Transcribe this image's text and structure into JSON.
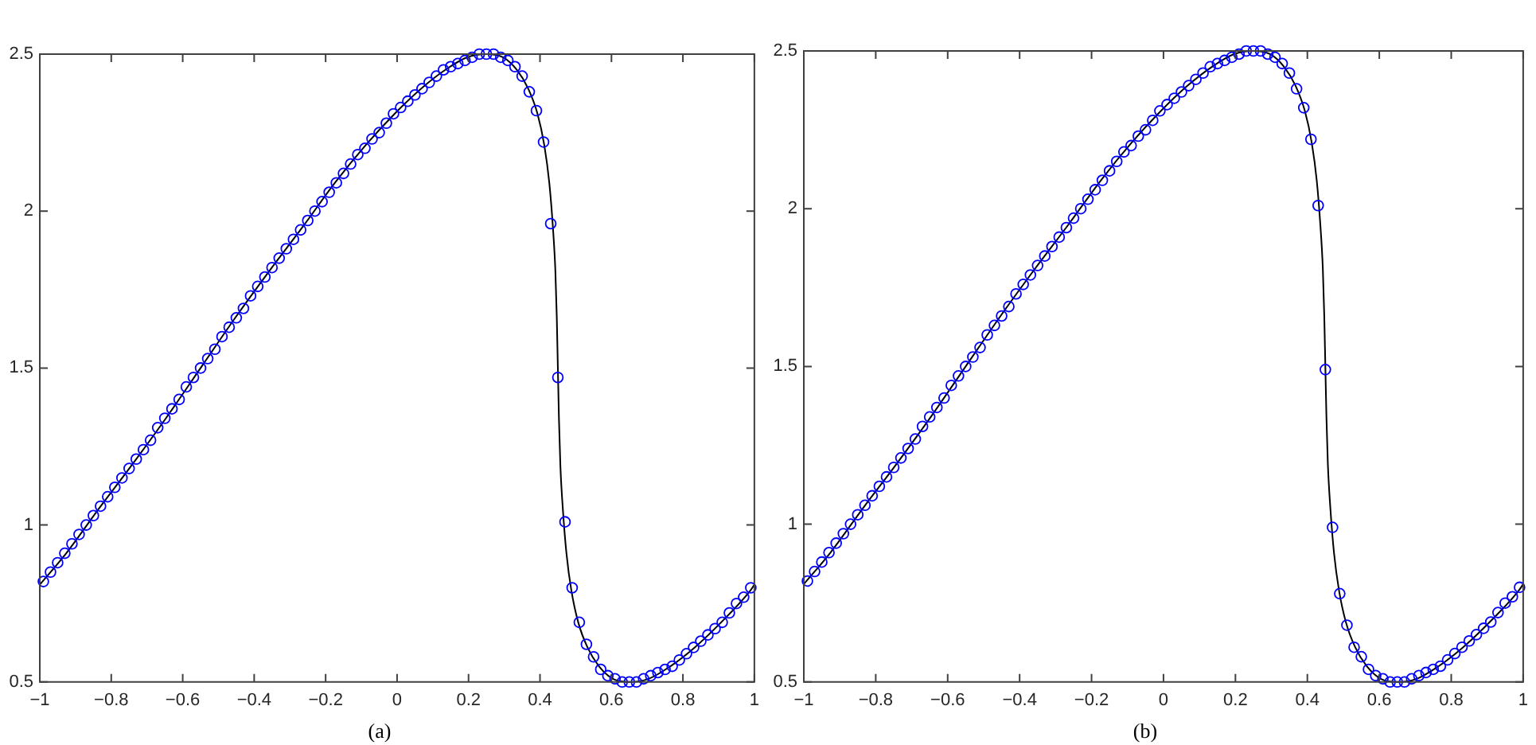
{
  "chart_data": [
    {
      "type": "line",
      "title": "(a)",
      "xlim": [
        -1,
        1
      ],
      "xticks": [
        {
          "value": -1,
          "label": "−1"
        },
        {
          "value": -0.8,
          "label": "−0.8"
        },
        {
          "value": -0.6,
          "label": "−0.6"
        },
        {
          "value": -0.4,
          "label": "−0.4"
        },
        {
          "value": -0.2,
          "label": "−0.2"
        },
        0,
        0.2,
        0.4,
        0.6,
        0.8,
        1
      ],
      "ylim": [
        0.5,
        2.5
      ],
      "yticks": [
        0.5,
        1,
        1.5,
        2,
        2.5
      ],
      "series": [
        {
          "type": "line",
          "color": "#000000",
          "marker": "none",
          "line_style": "solid",
          "x": [
            -1,
            -0.926,
            -0.836,
            -0.743,
            -0.647,
            -0.55,
            -0.453,
            -0.357,
            -0.264,
            -0.174,
            -0.088,
            -0.007,
            0.067,
            0.135,
            0.196,
            0.25,
            0.296,
            0.335,
            0.367,
            0.393,
            0.412,
            0.426,
            0.436,
            0.443,
            0.447,
            0.45,
            0.453,
            0.457,
            0.464,
            0.474,
            0.488,
            0.507,
            0.533,
            0.565,
            0.604,
            0.65,
            0.704,
            0.765,
            0.833,
            0.907,
            0.988,
            1
          ],
          "values": [
            0.81,
            0.91,
            1.05,
            1.19,
            1.34,
            1.5,
            1.66,
            1.81,
            1.95,
            2.09,
            2.21,
            2.31,
            2.39,
            2.45,
            2.49,
            2.5,
            2.49,
            2.45,
            2.39,
            2.31,
            2.21,
            2.09,
            1.95,
            1.81,
            1.66,
            1.5,
            1.34,
            1.19,
            1.05,
            0.91,
            0.79,
            0.69,
            0.61,
            0.55,
            0.51,
            0.5,
            0.51,
            0.55,
            0.61,
            0.69,
            0.79,
            0.81
          ]
        },
        {
          "type": "scatter",
          "color": "#0000ff",
          "marker": "circle",
          "x": [
            -0.99,
            -0.97,
            -0.95,
            -0.93,
            -0.91,
            -0.89,
            -0.87,
            -0.85,
            -0.83,
            -0.81,
            -0.79,
            -0.77,
            -0.75,
            -0.73,
            -0.71,
            -0.69,
            -0.67,
            -0.65,
            -0.63,
            -0.61,
            -0.59,
            -0.57,
            -0.55,
            -0.53,
            -0.51,
            -0.49,
            -0.47,
            -0.45,
            -0.43,
            -0.41,
            -0.39,
            -0.37,
            -0.35,
            -0.33,
            -0.31,
            -0.29,
            -0.27,
            -0.25,
            -0.23,
            -0.21,
            -0.19,
            -0.17,
            -0.15,
            -0.13,
            -0.11,
            -0.09,
            -0.07,
            -0.05,
            -0.03,
            -0.01,
            0.01,
            0.03,
            0.05,
            0.07,
            0.09,
            0.11,
            0.13,
            0.15,
            0.17,
            0.19,
            0.21,
            0.23,
            0.25,
            0.27,
            0.29,
            0.31,
            0.33,
            0.35,
            0.37,
            0.39,
            0.41,
            0.43,
            0.45,
            0.47,
            0.49,
            0.51,
            0.53,
            0.55,
            0.57,
            0.59,
            0.61,
            0.63,
            0.65,
            0.67,
            0.69,
            0.71,
            0.73,
            0.75,
            0.77,
            0.79,
            0.81,
            0.83,
            0.85,
            0.87,
            0.89,
            0.91,
            0.93,
            0.95,
            0.97,
            0.99
          ],
          "values": [
            0.82,
            0.85,
            0.88,
            0.91,
            0.94,
            0.97,
            1.0,
            1.03,
            1.06,
            1.09,
            1.12,
            1.15,
            1.18,
            1.21,
            1.24,
            1.27,
            1.31,
            1.34,
            1.37,
            1.4,
            1.44,
            1.47,
            1.5,
            1.53,
            1.56,
            1.6,
            1.63,
            1.66,
            1.69,
            1.73,
            1.76,
            1.79,
            1.82,
            1.85,
            1.88,
            1.91,
            1.94,
            1.97,
            2.0,
            2.03,
            2.06,
            2.09,
            2.12,
            2.15,
            2.18,
            2.2,
            2.23,
            2.25,
            2.28,
            2.31,
            2.33,
            2.35,
            2.37,
            2.39,
            2.41,
            2.43,
            2.45,
            2.46,
            2.47,
            2.48,
            2.49,
            2.5,
            2.5,
            2.5,
            2.49,
            2.48,
            2.46,
            2.43,
            2.38,
            2.32,
            2.22,
            1.96,
            1.47,
            1.01,
            0.8,
            0.69,
            0.62,
            0.58,
            0.54,
            0.52,
            0.51,
            0.5,
            0.5,
            0.5,
            0.51,
            0.52,
            0.53,
            0.54,
            0.55,
            0.57,
            0.59,
            0.61,
            0.63,
            0.65,
            0.67,
            0.69,
            0.72,
            0.75,
            0.77,
            0.8
          ]
        }
      ]
    },
    {
      "type": "line",
      "title": "(b)",
      "xlim": [
        -1,
        1
      ],
      "xticks": [
        {
          "value": -1,
          "label": "−1"
        },
        {
          "value": -0.8,
          "label": "−0.8"
        },
        {
          "value": -0.6,
          "label": "−0.6"
        },
        {
          "value": -0.4,
          "label": "−0.4"
        },
        {
          "value": -0.2,
          "label": "−0.2"
        },
        0,
        0.2,
        0.4,
        0.6,
        0.8,
        1
      ],
      "ylim": [
        0.5,
        2.5
      ],
      "yticks": [
        0.5,
        1,
        1.5,
        2,
        2.5
      ],
      "series": [
        {
          "type": "line",
          "color": "#000000",
          "marker": "none",
          "line_style": "solid",
          "x": [
            -1,
            -0.926,
            -0.836,
            -0.743,
            -0.647,
            -0.55,
            -0.453,
            -0.357,
            -0.264,
            -0.174,
            -0.088,
            -0.007,
            0.067,
            0.135,
            0.196,
            0.25,
            0.296,
            0.335,
            0.367,
            0.393,
            0.412,
            0.426,
            0.436,
            0.443,
            0.447,
            0.45,
            0.453,
            0.457,
            0.464,
            0.474,
            0.488,
            0.507,
            0.533,
            0.565,
            0.604,
            0.65,
            0.704,
            0.765,
            0.833,
            0.907,
            0.988,
            1
          ],
          "values": [
            0.81,
            0.91,
            1.05,
            1.19,
            1.34,
            1.5,
            1.66,
            1.81,
            1.95,
            2.09,
            2.21,
            2.31,
            2.39,
            2.45,
            2.49,
            2.5,
            2.49,
            2.45,
            2.39,
            2.31,
            2.21,
            2.09,
            1.95,
            1.81,
            1.66,
            1.5,
            1.34,
            1.19,
            1.05,
            0.91,
            0.79,
            0.69,
            0.61,
            0.55,
            0.51,
            0.5,
            0.51,
            0.55,
            0.61,
            0.69,
            0.79,
            0.81
          ]
        },
        {
          "type": "scatter",
          "color": "#0000ff",
          "marker": "circle",
          "x": [
            -0.99,
            -0.97,
            -0.95,
            -0.93,
            -0.91,
            -0.89,
            -0.87,
            -0.85,
            -0.83,
            -0.81,
            -0.79,
            -0.77,
            -0.75,
            -0.73,
            -0.71,
            -0.69,
            -0.67,
            -0.65,
            -0.63,
            -0.61,
            -0.59,
            -0.57,
            -0.55,
            -0.53,
            -0.51,
            -0.49,
            -0.47,
            -0.45,
            -0.43,
            -0.41,
            -0.39,
            -0.37,
            -0.35,
            -0.33,
            -0.31,
            -0.29,
            -0.27,
            -0.25,
            -0.23,
            -0.21,
            -0.19,
            -0.17,
            -0.15,
            -0.13,
            -0.11,
            -0.09,
            -0.07,
            -0.05,
            -0.03,
            -0.01,
            0.01,
            0.03,
            0.05,
            0.07,
            0.09,
            0.11,
            0.13,
            0.15,
            0.17,
            0.19,
            0.21,
            0.23,
            0.25,
            0.27,
            0.29,
            0.31,
            0.33,
            0.35,
            0.37,
            0.39,
            0.41,
            0.43,
            0.45,
            0.47,
            0.49,
            0.51,
            0.53,
            0.55,
            0.57,
            0.59,
            0.61,
            0.63,
            0.65,
            0.67,
            0.69,
            0.71,
            0.73,
            0.75,
            0.77,
            0.79,
            0.81,
            0.83,
            0.85,
            0.87,
            0.89,
            0.91,
            0.93,
            0.95,
            0.97,
            0.99
          ],
          "values": [
            0.82,
            0.85,
            0.88,
            0.91,
            0.94,
            0.97,
            1.0,
            1.03,
            1.06,
            1.09,
            1.12,
            1.15,
            1.18,
            1.21,
            1.24,
            1.27,
            1.31,
            1.34,
            1.37,
            1.4,
            1.44,
            1.47,
            1.5,
            1.53,
            1.56,
            1.6,
            1.63,
            1.66,
            1.69,
            1.73,
            1.76,
            1.79,
            1.82,
            1.85,
            1.88,
            1.91,
            1.94,
            1.97,
            2.0,
            2.03,
            2.06,
            2.09,
            2.12,
            2.15,
            2.18,
            2.2,
            2.23,
            2.25,
            2.28,
            2.31,
            2.33,
            2.35,
            2.37,
            2.39,
            2.41,
            2.43,
            2.45,
            2.46,
            2.47,
            2.48,
            2.49,
            2.5,
            2.5,
            2.5,
            2.49,
            2.48,
            2.46,
            2.43,
            2.38,
            2.32,
            2.22,
            2.01,
            1.49,
            0.99,
            0.78,
            0.68,
            0.61,
            0.58,
            0.54,
            0.52,
            0.51,
            0.5,
            0.5,
            0.5,
            0.51,
            0.52,
            0.53,
            0.54,
            0.55,
            0.57,
            0.59,
            0.61,
            0.63,
            0.65,
            0.67,
            0.69,
            0.72,
            0.75,
            0.77,
            0.8
          ]
        }
      ]
    }
  ]
}
